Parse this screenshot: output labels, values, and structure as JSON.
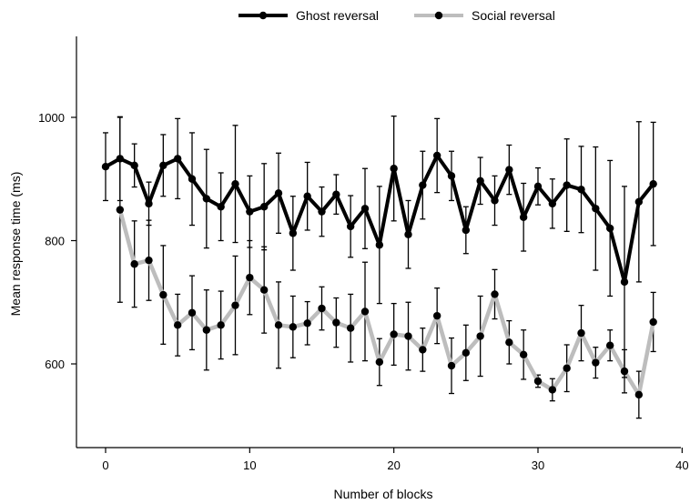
{
  "chart_data": {
    "type": "line",
    "xlabel": "Number of blocks",
    "ylabel": "Mean response time (ms)",
    "xlim": [
      -1,
      40
    ],
    "ylim": [
      480,
      1130
    ],
    "xticks": [
      0,
      10,
      20,
      30,
      40
    ],
    "yticks": [
      600,
      800,
      1000
    ],
    "grid": false,
    "legend_position": "top",
    "series": [
      {
        "name": "Ghost reversal",
        "color": "#000000",
        "x": [
          0,
          1,
          2,
          3,
          4,
          5,
          6,
          7,
          8,
          9,
          10,
          11,
          12,
          13,
          14,
          15,
          16,
          17,
          18,
          19,
          20,
          21,
          22,
          23,
          24,
          25,
          26,
          27,
          28,
          29,
          30,
          31,
          32,
          33,
          34,
          35,
          36,
          37,
          38
        ],
        "y": [
          920,
          933,
          922,
          860,
          922,
          933,
          900,
          868,
          855,
          892,
          847,
          855,
          877,
          812,
          872,
          847,
          875,
          823,
          852,
          793,
          917,
          810,
          890,
          938,
          905,
          817,
          897,
          865,
          915,
          838,
          888,
          860,
          890,
          883,
          852,
          820,
          733,
          863,
          892
        ],
        "err": [
          55,
          68,
          35,
          35,
          50,
          65,
          75,
          80,
          55,
          95,
          58,
          70,
          65,
          60,
          55,
          40,
          32,
          50,
          65,
          95,
          85,
          55,
          55,
          60,
          40,
          38,
          38,
          40,
          40,
          55,
          30,
          40,
          75,
          70,
          100,
          110,
          155,
          130,
          100
        ]
      },
      {
        "name": "Social reversal",
        "color": "#bdbdbd",
        "x": [
          1,
          2,
          3,
          4,
          5,
          6,
          7,
          8,
          9,
          10,
          11,
          12,
          13,
          14,
          15,
          16,
          17,
          18,
          19,
          20,
          21,
          22,
          23,
          24,
          25,
          26,
          27,
          28,
          29,
          30,
          31,
          32,
          33,
          34,
          35,
          36,
          37,
          38
        ],
        "y": [
          850,
          762,
          768,
          712,
          663,
          683,
          655,
          663,
          695,
          740,
          720,
          663,
          660,
          666,
          690,
          667,
          658,
          685,
          603,
          648,
          645,
          623,
          678,
          597,
          618,
          645,
          713,
          635,
          615,
          572,
          558,
          593,
          650,
          602,
          630,
          588,
          550,
          668
        ],
        "err": [
          150,
          70,
          65,
          80,
          50,
          60,
          65,
          55,
          80,
          60,
          70,
          70,
          50,
          35,
          35,
          40,
          55,
          80,
          38,
          50,
          55,
          35,
          45,
          45,
          45,
          65,
          40,
          35,
          40,
          10,
          18,
          38,
          45,
          25,
          25,
          35,
          38,
          48
        ]
      }
    ]
  }
}
